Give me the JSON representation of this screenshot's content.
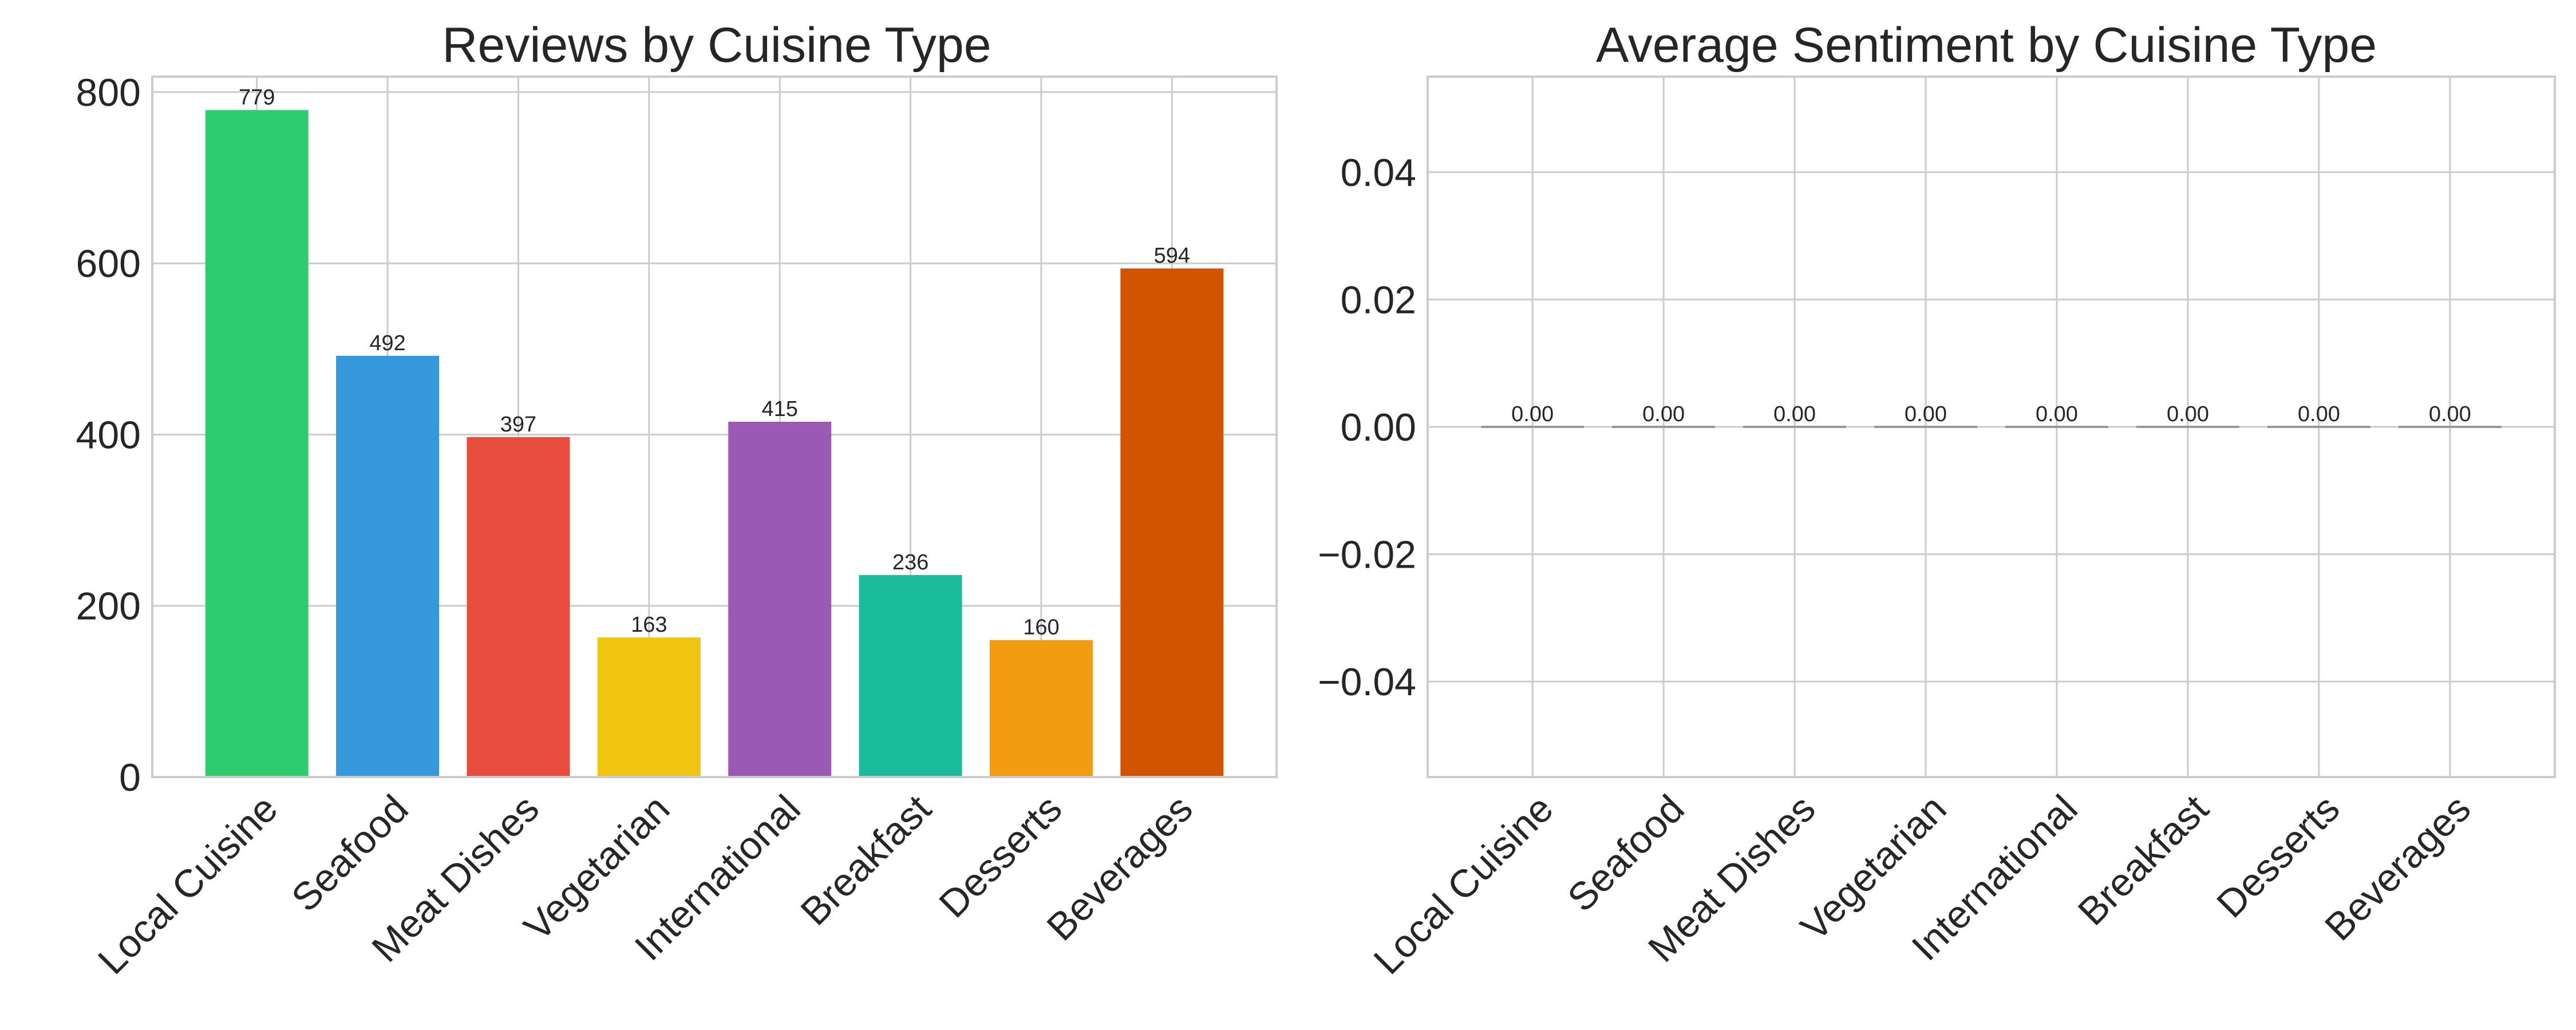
{
  "chart_data": [
    {
      "type": "bar",
      "title": "Reviews by Cuisine Type",
      "xlabel": "",
      "ylabel": "",
      "categories": [
        "Local Cuisine",
        "Seafood",
        "Meat Dishes",
        "Vegetarian",
        "International",
        "Breakfast",
        "Desserts",
        "Beverages"
      ],
      "values": [
        779,
        492,
        397,
        163,
        415,
        236,
        160,
        594
      ],
      "data_labels": [
        "779",
        "492",
        "397",
        "163",
        "415",
        "236",
        "160",
        "594"
      ],
      "colors": [
        "#2ecc71",
        "#3498db",
        "#e74c3c",
        "#f1c40f",
        "#9b59b6",
        "#1abc9c",
        "#f39c12",
        "#d35400"
      ],
      "ylim": [
        0,
        818
      ],
      "yticks": [
        0,
        200,
        400,
        600,
        800
      ],
      "ytick_labels": [
        "0",
        "200",
        "400",
        "600",
        "800"
      ],
      "grid": true,
      "legend": "none"
    },
    {
      "type": "bar",
      "title": "Average Sentiment by Cuisine Type",
      "xlabel": "",
      "ylabel": "",
      "categories": [
        "Local Cuisine",
        "Seafood",
        "Meat Dishes",
        "Vegetarian",
        "International",
        "Breakfast",
        "Desserts",
        "Beverages"
      ],
      "values": [
        0,
        0,
        0,
        0,
        0,
        0,
        0,
        0
      ],
      "data_labels": [
        "0.00",
        "0.00",
        "0.00",
        "0.00",
        "0.00",
        "0.00",
        "0.00",
        "0.00"
      ],
      "colors": [
        "#999999",
        "#999999",
        "#999999",
        "#999999",
        "#999999",
        "#999999",
        "#999999",
        "#999999"
      ],
      "ylim": [
        -0.055,
        0.055
      ],
      "yticks": [
        -0.04,
        -0.02,
        0,
        0.02,
        0.04
      ],
      "ytick_labels": [
        "−0.04",
        "−0.02",
        "0.00",
        "0.02",
        "0.04"
      ],
      "grid": true,
      "legend": "none"
    }
  ]
}
